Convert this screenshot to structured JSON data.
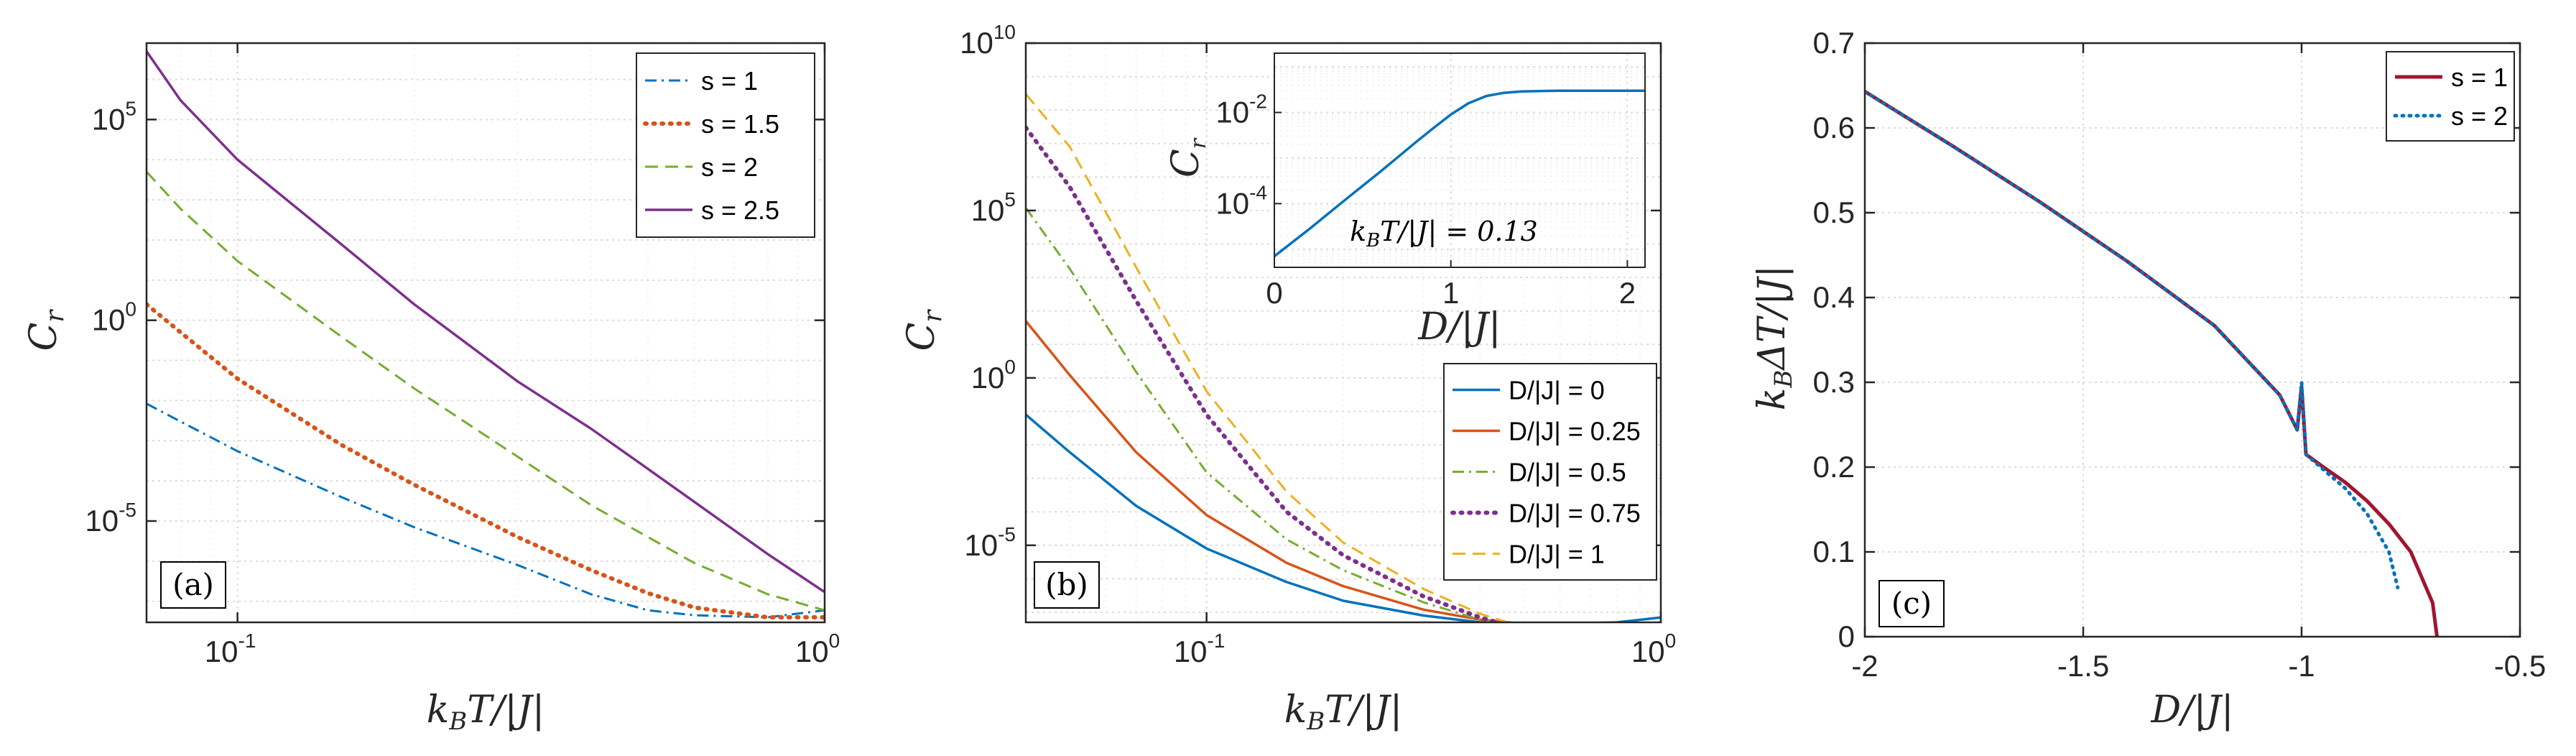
{
  "chart_data": [
    {
      "type": "line",
      "panel_label": "(a)",
      "xscale": "log",
      "yscale": "log",
      "xlim": [
        0.07,
        1.0
      ],
      "ylim": [
        3e-08,
        8000000.0
      ],
      "xlabel": "k_B T/|J|",
      "ylabel": "C_r",
      "xticks": [
        {
          "base": "10",
          "exp": "-1",
          "value": 0.1
        },
        {
          "base": "10",
          "exp": "0",
          "value": 1.0
        }
      ],
      "yticks": [
        {
          "base": "10",
          "exp": "-5",
          "value": 1e-05
        },
        {
          "base": "10",
          "exp": "0",
          "value": 1
        },
        {
          "base": "10",
          "exp": "5",
          "value": 100000.0
        }
      ],
      "legend_position": "top-right",
      "series": [
        {
          "name": "s = 1",
          "color": "#0072BD",
          "dash": "dashdot",
          "width": 3,
          "x": [
            0.07,
            0.08,
            0.1,
            0.15,
            0.2,
            0.3,
            0.4,
            0.5,
            0.6,
            0.8,
            1.0
          ],
          "y": [
            0.0084,
            0.003,
            0.00055,
            4e-05,
            7e-06,
            8e-07,
            1.5e-07,
            6e-08,
            4.5e-08,
            4e-08,
            6e-08
          ]
        },
        {
          "name": "s = 1.5",
          "color": "#D95319",
          "dash": "dotted",
          "width": 6,
          "x": [
            0.07,
            0.08,
            0.1,
            0.15,
            0.2,
            0.3,
            0.4,
            0.5,
            0.6,
            0.8,
            1.0
          ],
          "y": [
            2.5,
            0.5,
            0.035,
            0.0008,
            8e-05,
            4e-06,
            6e-07,
            1.6e-07,
            7e-08,
            4e-08,
            4e-08
          ]
        },
        {
          "name": "s = 2",
          "color": "#77AC30",
          "dash": "dashed",
          "width": 3,
          "x": [
            0.07,
            0.08,
            0.1,
            0.15,
            0.2,
            0.3,
            0.4,
            0.5,
            0.6,
            0.8,
            1.0
          ],
          "y": [
            5000,
            600,
            30,
            0.4,
            0.02,
            0.0004,
            2.5e-05,
            4e-06,
            9e-07,
            1.5e-07,
            6e-08
          ]
        },
        {
          "name": "s = 2.5",
          "color": "#7E2F8E",
          "dash": "solid",
          "width": 3.5,
          "x": [
            0.07,
            0.08,
            0.1,
            0.15,
            0.2,
            0.3,
            0.4,
            0.5,
            0.6,
            0.8,
            1.0
          ],
          "y": [
            5000000,
            300000,
            10000,
            80,
            2.5,
            0.03,
            0.002,
            0.0002,
            3e-05,
            1.5e-06,
            1.7e-07
          ]
        }
      ]
    },
    {
      "type": "line",
      "panel_label": "(b)",
      "xscale": "log",
      "yscale": "log",
      "xlim": [
        0.04,
        1.0
      ],
      "ylim": [
        5e-08,
        10000000000.0
      ],
      "xlabel": "k_B T/|J|",
      "ylabel": "C_r",
      "xticks": [
        {
          "base": "10",
          "exp": "-1",
          "value": 0.1
        },
        {
          "base": "10",
          "exp": "0",
          "value": 1.0
        }
      ],
      "yticks": [
        {
          "base": "10",
          "exp": "-5",
          "value": 1e-05
        },
        {
          "base": "10",
          "exp": "0",
          "value": 1
        },
        {
          "base": "10",
          "exp": "5",
          "value": 100000.0
        },
        {
          "base": "10",
          "exp": "10",
          "value": 10000000000.0
        }
      ],
      "legend_position": "bottom-right",
      "series": [
        {
          "name": "D/|J| = 0",
          "color": "#0072BD",
          "dash": "solid",
          "width": 3.5,
          "x": [
            0.04,
            0.05,
            0.07,
            0.1,
            0.15,
            0.2,
            0.3,
            0.4,
            0.5,
            0.6,
            0.8,
            1.0
          ],
          "y": [
            0.08,
            0.006,
            0.00015,
            8e-06,
            8e-07,
            2.2e-07,
            8e-08,
            5e-08,
            4.5e-08,
            4.5e-08,
            5e-08,
            7e-08
          ]
        },
        {
          "name": "D/|J| = 0.25",
          "color": "#D95319",
          "dash": "solid",
          "width": 3.5,
          "x": [
            0.04,
            0.05,
            0.07,
            0.1,
            0.15,
            0.2,
            0.3,
            0.4,
            0.5,
            0.6,
            0.8,
            1.0
          ],
          "y": [
            50,
            1.2,
            0.006,
            8e-05,
            3e-06,
            6e-07,
            1.2e-07,
            6e-08,
            4.5e-08,
            4e-08,
            3e-08,
            3e-08
          ]
        },
        {
          "name": "D/|J| = 0.5",
          "color": "#77AC30",
          "dash": "dashdot",
          "width": 3,
          "x": [
            0.04,
            0.05,
            0.07,
            0.1,
            0.15,
            0.2,
            0.3,
            0.4,
            0.5,
            0.6,
            0.8,
            1.0
          ],
          "y": [
            120000,
            1800,
            1.5,
            0.0015,
            1.5e-05,
            1.8e-06,
            2e-07,
            6e-08,
            3.5e-08,
            2.5e-08,
            2e-08,
            2e-08
          ]
        },
        {
          "name": "D/|J| = 0.75",
          "color": "#7E2F8E",
          "dash": "dotted",
          "width": 6,
          "x": [
            0.04,
            0.05,
            0.07,
            0.1,
            0.15,
            0.2,
            0.3,
            0.4,
            0.5,
            0.6,
            0.8,
            1.0
          ],
          "y": [
            30000000,
            500000,
            200,
            0.08,
            0.0001,
            5e-06,
            3e-07,
            7e-08,
            3e-08,
            2e-08,
            1.5e-08,
            1.5e-08
          ]
        },
        {
          "name": "D/|J| = 1",
          "color": "#EDB120",
          "dash": "dashed",
          "width": 3,
          "x": [
            0.04,
            0.05,
            0.07,
            0.1,
            0.15,
            0.2,
            0.3,
            0.4,
            0.5,
            0.6,
            0.8,
            1.0
          ],
          "y": [
            300000000,
            8000000,
            2000,
            0.4,
            0.0004,
            1.2e-05,
            5e-07,
            9e-08,
            3.5e-08,
            2e-08,
            1.5e-08,
            1.5e-08
          ]
        }
      ],
      "inset": {
        "type": "line",
        "xscale": "linear",
        "yscale": "log",
        "xlim": [
          0,
          2.1
        ],
        "ylim": [
          4e-06,
          0.2
        ],
        "xlabel": "D/|J|",
        "ylabel": "C_r",
        "xticks": [
          {
            "label": "0",
            "value": 0
          },
          {
            "label": "1",
            "value": 1
          },
          {
            "label": "2",
            "value": 2
          }
        ],
        "yticks": [
          {
            "base": "10",
            "exp": "-4",
            "value": 0.0001
          },
          {
            "base": "10",
            "exp": "-2",
            "value": 0.01
          }
        ],
        "annotation": "k_B T/|J| = 0.13",
        "series": [
          {
            "name": "inset",
            "color": "#0072BD",
            "dash": "solid",
            "width": 3.5,
            "x": [
              0,
              0.2,
              0.4,
              0.6,
              0.8,
              0.9,
              1.0,
              1.1,
              1.2,
              1.3,
              1.4,
              1.6,
              1.8,
              2.0,
              2.1
            ],
            "y": [
              7e-06,
              2.8e-05,
              0.00012,
              0.0005,
              0.0022,
              0.0045,
              0.009,
              0.016,
              0.023,
              0.027,
              0.029,
              0.03,
              0.03,
              0.03,
              0.03
            ]
          }
        ]
      }
    },
    {
      "type": "line",
      "panel_label": "(c)",
      "xscale": "linear",
      "yscale": "linear",
      "xlim": [
        -2,
        -0.5
      ],
      "ylim": [
        0,
        0.7
      ],
      "xlabel": "D/|J|",
      "ylabel": "k_B ΔT/|J|",
      "xticks": [
        {
          "label": "-2",
          "value": -2
        },
        {
          "label": "-1.5",
          "value": -1.5
        },
        {
          "label": "-1",
          "value": -1
        },
        {
          "label": "-0.5",
          "value": -0.5
        }
      ],
      "yticks": [
        {
          "label": "0",
          "value": 0
        },
        {
          "label": "0.1",
          "value": 0.1
        },
        {
          "label": "0.2",
          "value": 0.2
        },
        {
          "label": "0.3",
          "value": 0.3
        },
        {
          "label": "0.4",
          "value": 0.4
        },
        {
          "label": "0.5",
          "value": 0.5
        },
        {
          "label": "0.6",
          "value": 0.6
        },
        {
          "label": "0.7",
          "value": 0.7
        }
      ],
      "legend_position": "top-right",
      "series": [
        {
          "name": "s = 1",
          "color": "#A2142F",
          "dash": "solid",
          "width": 5,
          "x": [
            -2.0,
            -1.8,
            -1.6,
            -1.4,
            -1.2,
            -1.05,
            -1.01,
            -1.0,
            -0.99,
            -0.95,
            -0.9,
            -0.85,
            -0.8,
            -0.75,
            -0.7,
            -0.69
          ],
          "y": [
            0.643,
            0.579,
            0.513,
            0.443,
            0.367,
            0.285,
            0.244,
            0.295,
            0.215,
            0.2,
            0.182,
            0.16,
            0.133,
            0.1,
            0.04,
            0.0
          ]
        },
        {
          "name": "s = 2",
          "color": "#0072BD",
          "dash": "dotted",
          "width": 5,
          "x": [
            -2.0,
            -1.8,
            -1.6,
            -1.4,
            -1.2,
            -1.05,
            -1.01,
            -1.0,
            -0.99,
            -0.95,
            -0.9,
            -0.85,
            -0.8,
            -0.78
          ],
          "y": [
            0.643,
            0.579,
            0.513,
            0.443,
            0.367,
            0.285,
            0.244,
            0.3,
            0.215,
            0.197,
            0.175,
            0.145,
            0.1,
            0.058
          ]
        }
      ]
    }
  ]
}
